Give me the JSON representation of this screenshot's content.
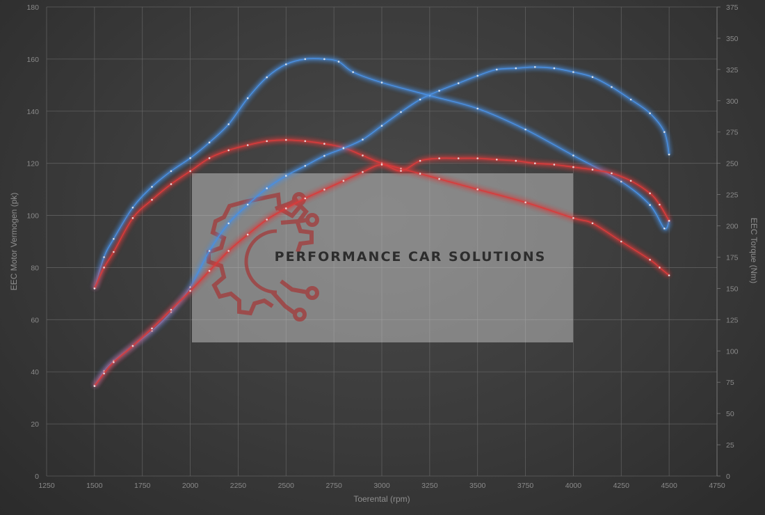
{
  "chart_data": {
    "type": "line",
    "xlabel": "Toerental (rpm)",
    "ylabel": "EEC Motor Vermogen (pk)",
    "y2label": "EEC Torque (Nm)",
    "xlim": [
      1250,
      4750
    ],
    "ylim": [
      0,
      180
    ],
    "y2lim": [
      0,
      375
    ],
    "xticks": [
      1250,
      1500,
      1750,
      2000,
      2250,
      2500,
      2750,
      3000,
      3250,
      3500,
      3750,
      4000,
      4250,
      4500,
      4750
    ],
    "yticks": [
      0,
      20,
      40,
      60,
      80,
      100,
      120,
      140,
      160,
      180
    ],
    "y2ticks": [
      0,
      25,
      50,
      75,
      100,
      125,
      150,
      175,
      200,
      225,
      250,
      275,
      300,
      325,
      350,
      375
    ],
    "grid": true,
    "series": [
      {
        "color": "#4a8fe0",
        "axis": "left",
        "x": [
          1500,
          1550,
          1600,
          1700,
          1800,
          1900,
          2000,
          2100,
          2200,
          2300,
          2400,
          2500,
          2600,
          2700,
          2775,
          2850,
          3000,
          3250,
          3500,
          3750,
          4000,
          4250,
          4400,
          4475,
          4500
        ],
        "y": [
          72,
          84,
          91,
          103,
          111,
          117,
          122,
          128,
          135,
          145,
          153,
          158,
          160,
          160,
          159,
          155,
          151,
          146,
          141,
          133,
          123,
          113,
          104,
          95,
          98
        ]
      },
      {
        "color": "#d93b3b",
        "axis": "left",
        "x": [
          1500,
          1550,
          1600,
          1700,
          1800,
          1900,
          2000,
          2100,
          2200,
          2300,
          2400,
          2500,
          2600,
          2700,
          2800,
          2900,
          3000,
          3100,
          3200,
          3300,
          3500,
          3750,
          4000,
          4100,
          4250,
          4400,
          4450,
          4500
        ],
        "y": [
          72,
          80,
          86,
          99,
          106,
          112,
          117,
          122,
          125,
          127,
          128.5,
          129,
          128.5,
          127.5,
          126,
          123,
          120,
          118,
          116,
          114,
          110,
          105,
          99,
          97,
          90,
          83,
          80,
          77
        ]
      },
      {
        "color": "#4a8fe0",
        "axis": "right",
        "x": [
          1500,
          1550,
          1600,
          1700,
          1800,
          1900,
          2000,
          2100,
          2200,
          2300,
          2400,
          2500,
          2600,
          2700,
          2800,
          2900,
          3000,
          3100,
          3200,
          3300,
          3400,
          3500,
          3600,
          3700,
          3800,
          3900,
          4000,
          4100,
          4200,
          4300,
          4400,
          4475,
          4500
        ],
        "y": [
          72,
          84,
          92,
          104,
          116,
          131,
          151,
          180,
          202,
          217,
          230,
          240,
          248,
          256,
          262,
          269,
          280,
          291,
          301,
          308,
          314,
          320,
          325,
          326,
          327,
          326,
          323,
          319,
          311,
          301,
          290,
          275,
          257
        ]
      },
      {
        "color": "#d93b3b",
        "axis": "right",
        "x": [
          1500,
          1550,
          1600,
          1700,
          1800,
          1900,
          2000,
          2100,
          2200,
          2300,
          2400,
          2500,
          2600,
          2700,
          2800,
          2900,
          3000,
          3100,
          3200,
          3300,
          3400,
          3500,
          3600,
          3700,
          3800,
          3900,
          4000,
          4100,
          4200,
          4300,
          4400,
          4450,
          4500
        ],
        "y": [
          72,
          82,
          91,
          104,
          118,
          133,
          148,
          164,
          180,
          193,
          205,
          214,
          222,
          229,
          236,
          243,
          249,
          244,
          252,
          254,
          254,
          254,
          253,
          252,
          250,
          249,
          247,
          245,
          242,
          236,
          226,
          217,
          204
        ]
      }
    ]
  },
  "watermark": {
    "text": "PERFORMANCE CAR SOLUTIONS",
    "icon": "gear-circuit-logo-icon"
  }
}
